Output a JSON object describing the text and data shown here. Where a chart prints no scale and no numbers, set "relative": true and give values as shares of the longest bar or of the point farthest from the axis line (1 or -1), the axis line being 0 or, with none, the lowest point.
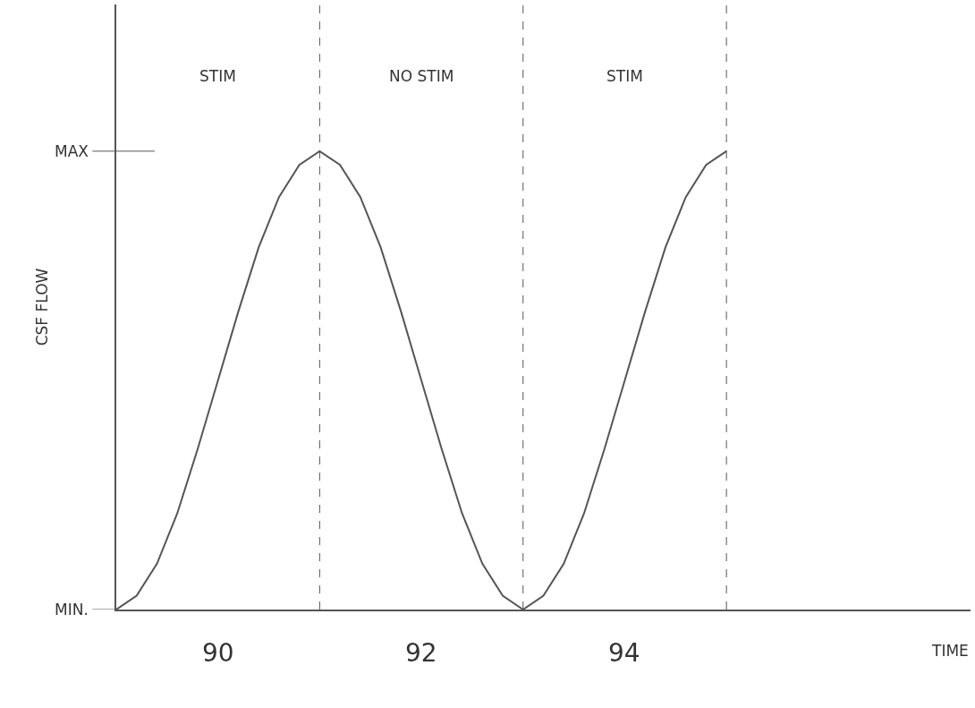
{
  "chart_data": {
    "type": "line",
    "ylabel": "CSF FLOW",
    "categories": [
      null,
      null,
      null,
      null,
      null,
      null,
      null,
      null,
      null,
      null,
      null,
      null,
      null,
      null,
      null,
      null,
      null,
      null,
      null,
      null,
      null,
      null,
      null,
      null,
      null,
      null,
      null,
      null,
      null,
      null,
      null
    ],
    "series": [
      {
        "color": "#555555",
        "values": [
          0,
          0.03,
          0.1,
          0.21,
          0.35,
          0.5,
          0.65,
          0.79,
          0.9,
          0.97,
          1,
          0.97,
          0.9,
          0.79,
          0.65,
          0.5,
          0.35,
          0.21,
          0.1,
          0.03,
          0,
          0.03,
          0.1,
          0.21,
          0.35,
          0.5,
          0.65,
          0.79,
          0.9,
          0.97,
          1
        ]
      }
    ],
    "relative": true,
    "grid": "x",
    "marker": "none",
    "line_style": "solid",
    "annotations": [
      "STIM",
      "NO STIM",
      "STIM",
      "90",
      "92",
      "94",
      "MAX",
      "MIN.",
      "TIME"
    ]
  }
}
